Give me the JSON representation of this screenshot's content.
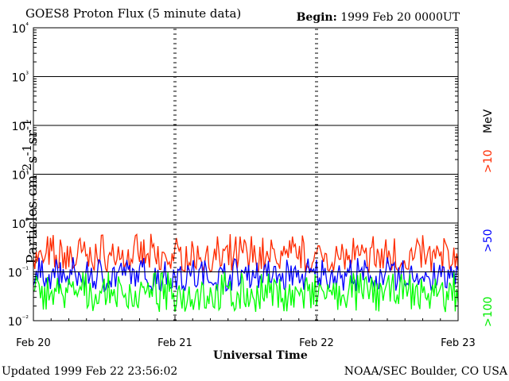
{
  "header": {
    "title": "GOES8 Proton Flux (5 minute data)",
    "begin_label": "Begin:",
    "begin_value": "1999 Feb 20 0000UT"
  },
  "footer": {
    "updated_label": "Updated",
    "updated_value": "1999 Feb 22 23:56:02",
    "credit": "NOAA/SEC Boulder, CO USA"
  },
  "chart_data": {
    "type": "line",
    "title": "GOES8 Proton Flux (5 minute data)",
    "xlabel": "Universal Time",
    "ylabel": "Particles cm⁻²s⁻¹sr⁻¹",
    "yscale": "log",
    "ylim": [
      0.01,
      10000
    ],
    "y_ticks": [
      "10⁻²",
      "10⁻¹",
      "10⁰",
      "10¹",
      "10²",
      "10³",
      "10⁴"
    ],
    "x_ticks": [
      "Feb 20",
      "Feb 21",
      "Feb 22",
      "Feb 23"
    ],
    "xlim_days": [
      0,
      3
    ],
    "grid": true,
    "legend_placement": "right",
    "series": [
      {
        "name": ">10",
        "unit": "MeV",
        "color": "#ff2a00",
        "typical": 0.18,
        "low": 0.1,
        "high": 0.6
      },
      {
        "name": ">50",
        "color": "#0000ff",
        "typical": 0.08,
        "low": 0.04,
        "high": 0.2
      },
      {
        "name": ">100",
        "color": "#00ff00",
        "typical": 0.035,
        "low": 0.015,
        "high": 0.1
      }
    ]
  }
}
